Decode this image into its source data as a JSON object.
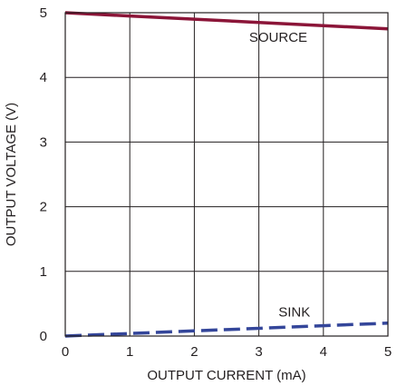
{
  "chart_data": {
    "type": "line",
    "title": "",
    "xlabel": "OUTPUT CURRENT (mA)",
    "ylabel": "OUTPUT VOLTAGE (V)",
    "xlim": [
      0,
      5
    ],
    "ylim": [
      0,
      5
    ],
    "x_ticks": [
      "0",
      "1",
      "2",
      "3",
      "4",
      "5"
    ],
    "y_ticks": [
      "0",
      "1",
      "2",
      "3",
      "4",
      "5"
    ],
    "grid": true,
    "legend": "none",
    "series": [
      {
        "name": "SOURCE",
        "x": [
          0,
          1,
          2,
          3,
          4,
          5
        ],
        "y": [
          5.0,
          4.95,
          4.9,
          4.85,
          4.8,
          4.75
        ],
        "color": "#8b1538",
        "dash": "solid"
      },
      {
        "name": "SINK",
        "x": [
          0,
          1,
          2,
          3,
          4,
          5
        ],
        "y": [
          0.0,
          0.04,
          0.08,
          0.12,
          0.16,
          0.2
        ],
        "color": "#34469a",
        "dash": "dashed"
      }
    ]
  }
}
